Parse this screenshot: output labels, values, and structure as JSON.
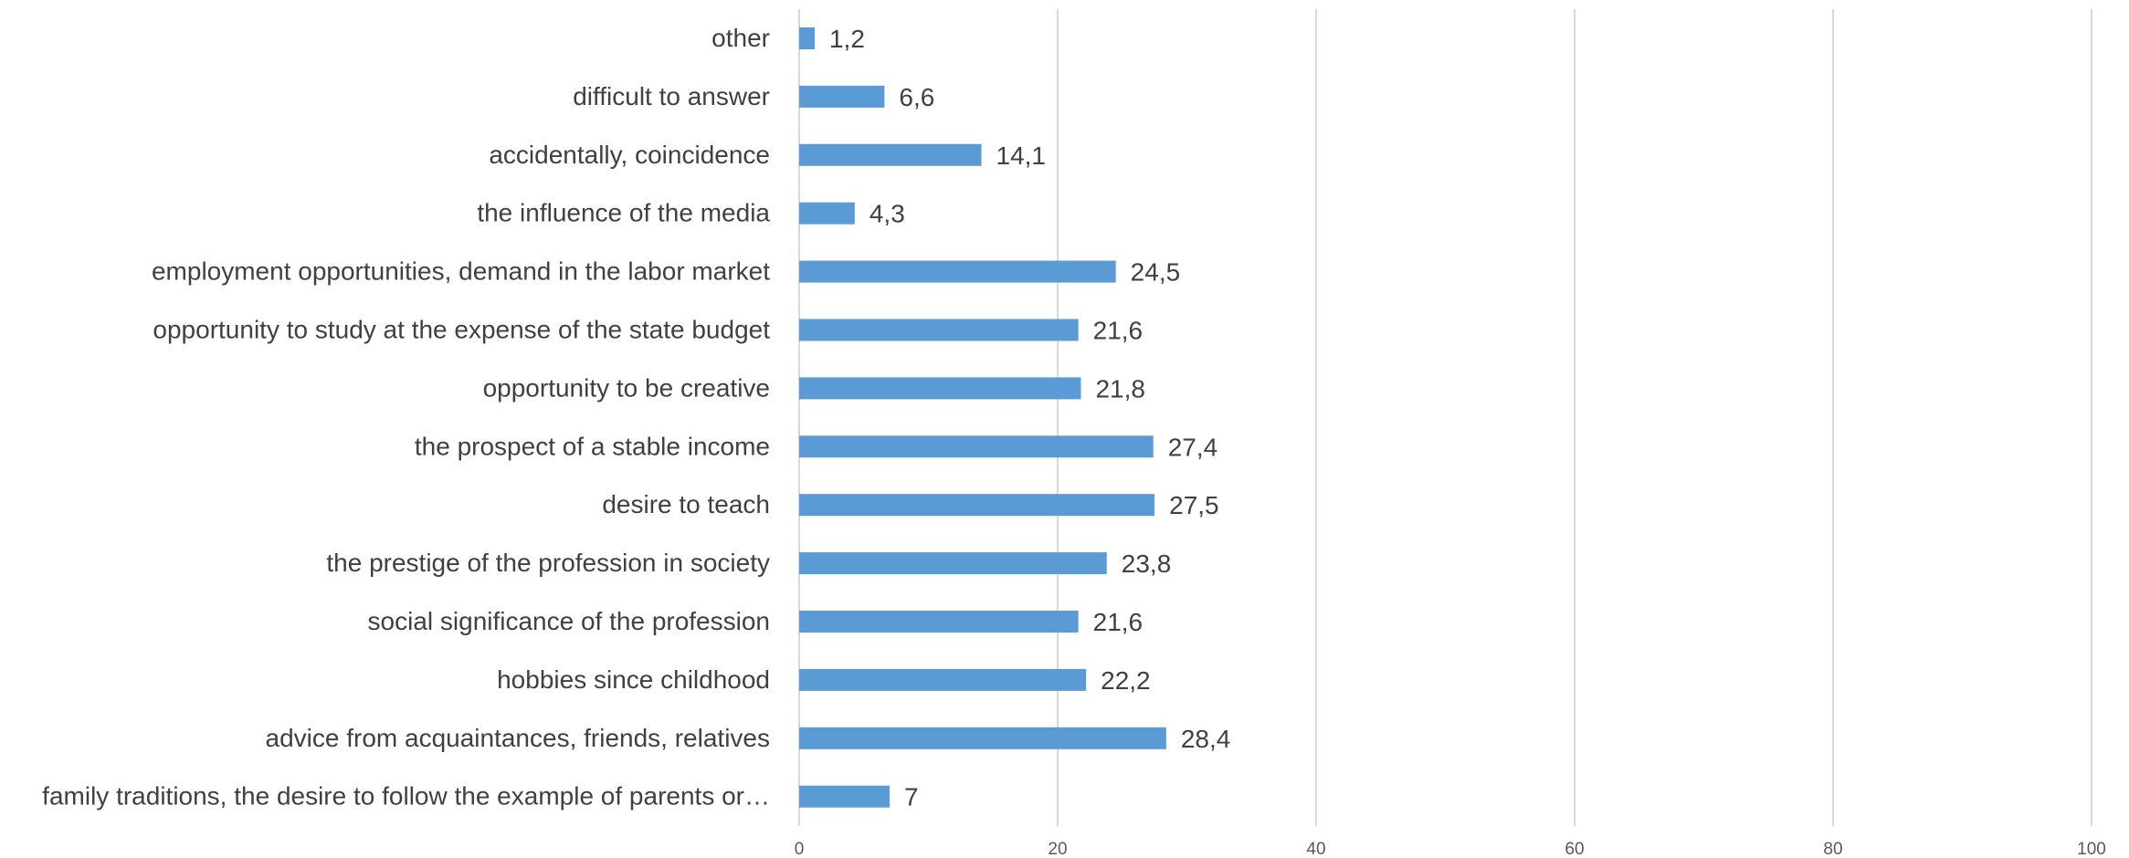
{
  "chart_data": {
    "type": "bar",
    "orientation": "horizontal",
    "categories": [
      "other",
      "difficult to answer",
      "accidentally, coincidence",
      "the influence of the media",
      "employment opportunities, demand in the labor market",
      "opportunity to study at the expense of the state budget",
      "opportunity to be creative",
      "the prospect of a stable income",
      "desire to teach",
      "the prestige of the profession in society",
      "social significance of the profession",
      "hobbies since childhood",
      "advice from acquaintances, friends, relatives",
      "family traditions, the desire to follow the example of parents or…"
    ],
    "values": [
      1.2,
      6.6,
      14.1,
      4.3,
      24.5,
      21.6,
      21.8,
      27.4,
      27.5,
      23.8,
      21.6,
      22.2,
      28.4,
      7
    ],
    "value_labels": [
      "1,2",
      "6,6",
      "14,1",
      "4,3",
      "24,5",
      "21,6",
      "21,8",
      "27,4",
      "27,5",
      "23,8",
      "21,6",
      "22,2",
      "28,4",
      "7"
    ],
    "xlim": [
      0,
      100
    ],
    "xticks": [
      0,
      20,
      40,
      60,
      80,
      100
    ],
    "title": "",
    "xlabel": "",
    "ylabel": "",
    "grid": true,
    "legend": "none",
    "bar_color": "#5b9bd5"
  }
}
